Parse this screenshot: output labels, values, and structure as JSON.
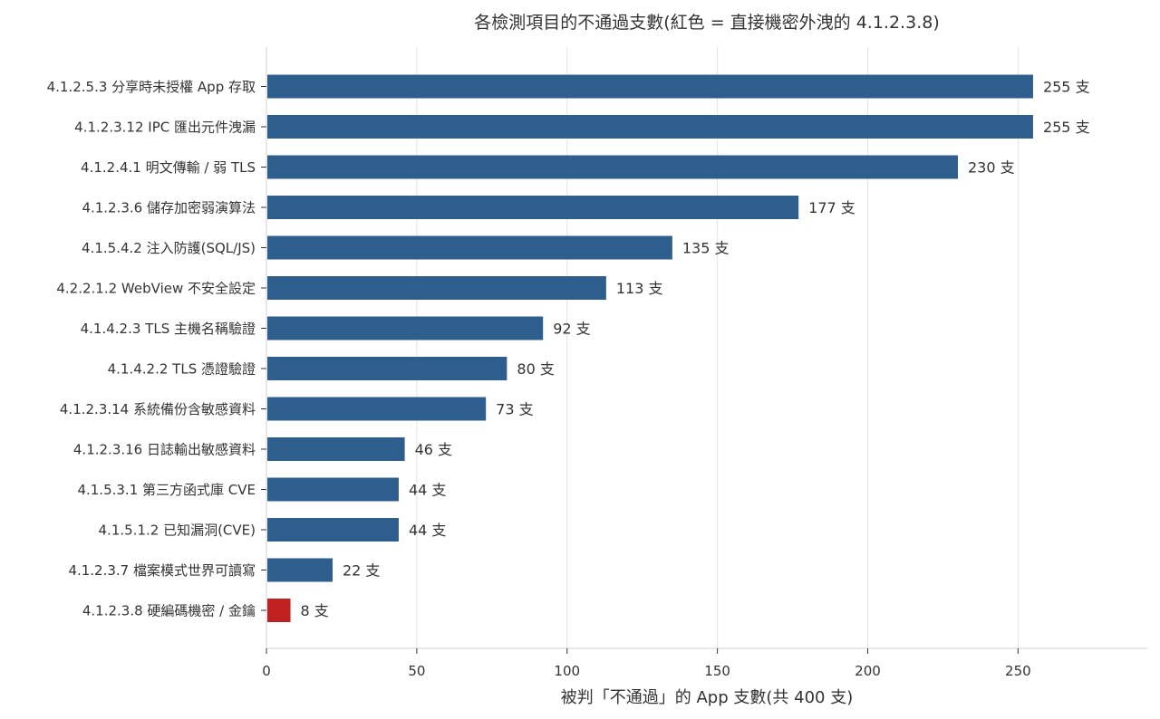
{
  "chart_data": {
    "type": "bar",
    "orientation": "horizontal",
    "title": "各檢測項目的不通過支數(紅色 = 直接機密外洩的 4.1.2.3.8)",
    "xlabel": "被判「不通過」的 App 支數(共 400 支)",
    "ylabel": "",
    "xlim": [
      0,
      293
    ],
    "xticks": [
      0,
      50,
      100,
      150,
      200,
      250
    ],
    "grid": "vertical",
    "value_suffix": " 支",
    "categories": [
      "4.1.2.5.3 分享時未授權 App 存取",
      "4.1.2.3.12 IPC 匯出元件洩漏",
      "4.1.2.4.1 明文傳輸 / 弱 TLS",
      "4.1.2.3.6 儲存加密弱演算法",
      "4.1.5.4.2 注入防護(SQL/JS)",
      "4.2.2.1.2 WebView 不安全設定",
      "4.1.4.2.3 TLS 主機名稱驗證",
      "4.1.4.2.2 TLS 憑證驗證",
      "4.1.2.3.14 系統備份含敏感資料",
      "4.1.2.3.16 日誌輸出敏感資料",
      "4.1.5.3.1 第三方函式庫 CVE",
      "4.1.5.1.2 已知漏洞(CVE)",
      "4.1.2.3.7 檔案模式世界可讀寫",
      "4.1.2.3.8 硬編碼機密 / 金鑰"
    ],
    "values": [
      255,
      255,
      230,
      177,
      135,
      113,
      92,
      80,
      73,
      46,
      44,
      44,
      22,
      8
    ],
    "value_labels": [
      "255 支",
      "255 支",
      "230 支",
      "177 支",
      "135 支",
      "113 支",
      "92 支",
      "80 支",
      "73 支",
      "46 支",
      "44 支",
      "44 支",
      "22 支",
      "8 支"
    ],
    "highlight_index": 13,
    "colors": {
      "default": "#2e5e8e",
      "highlight": "#c0201f"
    }
  }
}
